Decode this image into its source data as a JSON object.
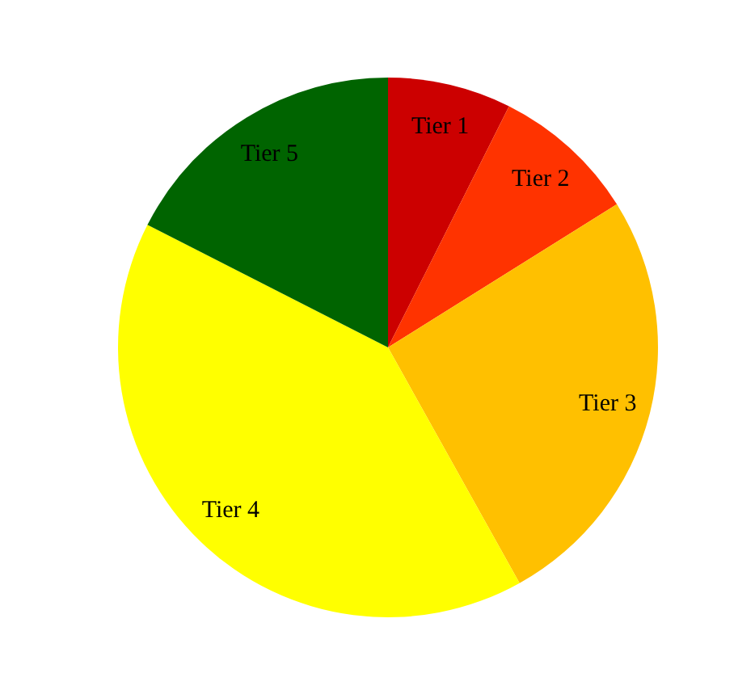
{
  "chart_data": {
    "type": "pie",
    "categories": [
      "Tier 1",
      "Tier 2",
      "Tier 3",
      "Tier 4",
      "Tier 5"
    ],
    "values": [
      7.4,
      8.7,
      25.8,
      40.6,
      17.5
    ],
    "colors": [
      "#cc0000",
      "#ff3300",
      "#ffc000",
      "#ffff00",
      "#006400"
    ],
    "legend": false
  }
}
